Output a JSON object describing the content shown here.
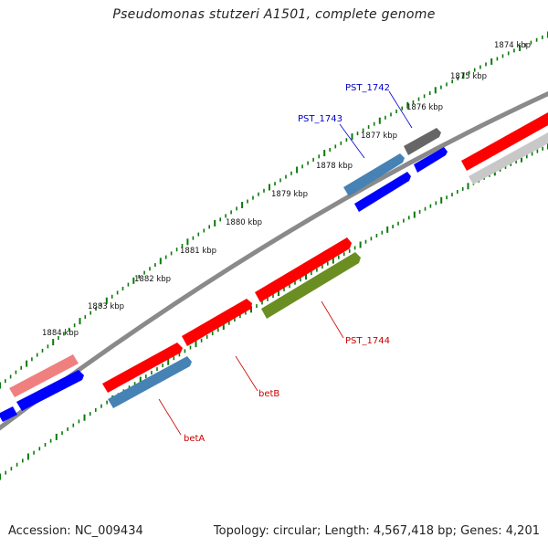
{
  "title": "Pseudomonas stutzeri A1501, complete genome",
  "footer": {
    "accession": "Accession: NC_009434",
    "stats": "Topology: circular; Length: 4,567,418 bp; Genes: 4,201"
  },
  "colors": {
    "red": "#ff0000",
    "blue": "#0000ff",
    "steelblue": "#4682b4",
    "olive": "#6b8e23",
    "pink": "#f08080",
    "darkgray": "#666666",
    "lightgray": "#c8c8c8",
    "backbone": "#888888",
    "ticks": "#0a7a0a",
    "label_blue": "#0000cc",
    "label_red": "#cc0000"
  },
  "kbp_labels": [
    "1874 kbp",
    "1875 kbp",
    "1876 kbp",
    "1877 kbp",
    "1878 kbp",
    "1879 kbp",
    "1880 kbp",
    "1881 kbp",
    "1882 kbp",
    "1883 kbp",
    "1884 kbp"
  ],
  "gene_labels": {
    "pst1742": "PST_1742",
    "pst1743": "PST_1743",
    "pst1744": "PST_1744",
    "betb": "betB",
    "beta": "betA"
  }
}
